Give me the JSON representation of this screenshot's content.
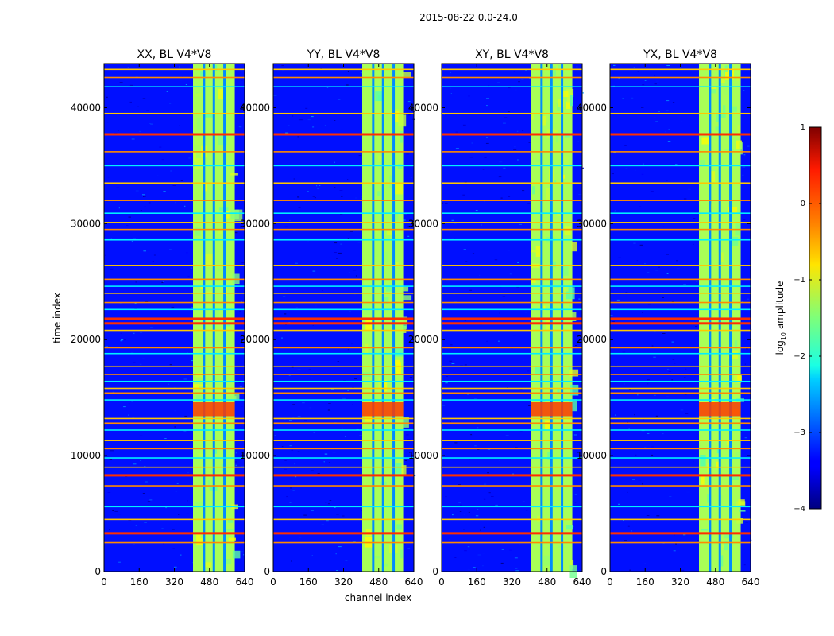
{
  "figure": {
    "suptitle": "2015-08-22 0.0-24.0"
  },
  "chart_data": {
    "type": "heatmap",
    "x_label": "channel index",
    "y_label": "time index",
    "x_ticks": [
      0,
      160,
      320,
      480,
      640
    ],
    "y_ticks": [
      0,
      10000,
      20000,
      30000,
      40000
    ],
    "xlim": [
      0,
      640
    ],
    "ylim": [
      0,
      43800
    ],
    "panels": [
      {
        "title": "XX, BL V4*V8"
      },
      {
        "title": "YY, BL V4*V8"
      },
      {
        "title": "XY, BL V4*V8"
      },
      {
        "title": "YX, BL V4*V8"
      }
    ],
    "colorbar": {
      "label_prefix": "log",
      "label_sub": "10",
      "label_suffix": " amplitude",
      "range": [
        -4,
        1
      ],
      "ticks": [
        1,
        0,
        -1,
        -2,
        -3,
        -4
      ],
      "tick_labels": [
        "1",
        "0",
        "−1",
        "−2",
        "−3",
        "−4"
      ],
      "colormap": "jet",
      "footnote": "......"
    },
    "background_level": -3.3,
    "signal_band": {
      "channel_start": 405,
      "channel_end": 595,
      "level": -1.3,
      "gap_channels": [
        455,
        500,
        548
      ]
    },
    "rfi_rows_time": [
      43300,
      42600,
      41800,
      39500,
      36200,
      35000,
      33500,
      32000,
      30900,
      30100,
      29500,
      28600,
      26400,
      25200,
      24600,
      24000,
      23200,
      22600,
      20800,
      19300,
      18800,
      17700,
      17000,
      16400,
      15800,
      15400,
      14800,
      13200,
      12800,
      12200,
      11300,
      10600,
      9800,
      9000,
      7400,
      5600,
      4500,
      2500
    ],
    "rfi_rows_strong_time": [
      37700,
      21800,
      21400,
      8300,
      3300
    ],
    "bright_patch": {
      "time_start": 13400,
      "time_end": 14600,
      "level": 0.1
    }
  }
}
